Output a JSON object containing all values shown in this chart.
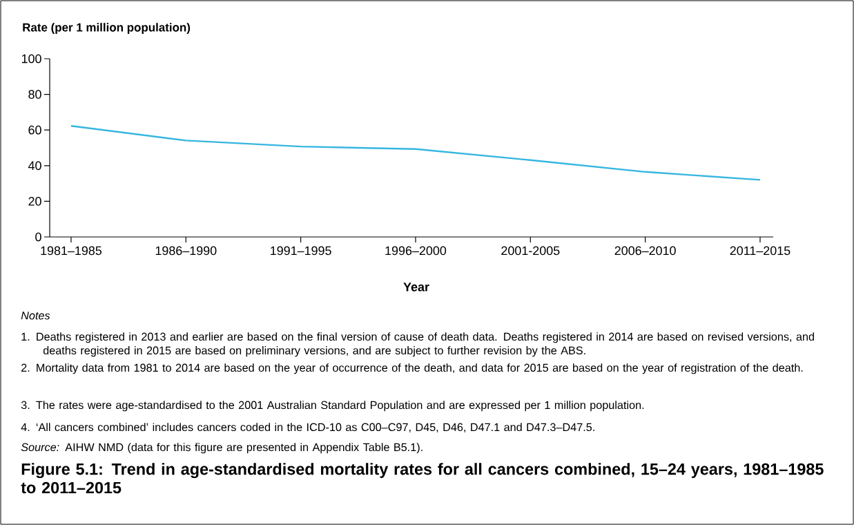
{
  "chart_data": {
    "type": "line",
    "title": "Figure 5.1: Trend in age-standardised mortality rates for all cancers combined, 15–24 years, 1981–1985 to 2011–2015",
    "xlabel": "Year",
    "ylabel": "Rate (per 1 million population)",
    "categories": [
      "1981–1985",
      "1986–1990",
      "1991–1995",
      "1996–2000",
      "2001-2005",
      "2006–2010",
      "2011–2015"
    ],
    "series": [
      {
        "color": "#35b6e0",
        "values": [
          62.3,
          54.1,
          50.7,
          49.3,
          43.1,
          36.5,
          32.0
        ]
      }
    ],
    "ylim": [
      0,
      100
    ],
    "yticks": [
      0,
      20,
      40,
      60,
      80,
      100
    ],
    "annotations": [
      "Notes",
      "1. Deaths registered in 2013 and earlier are based on the final version of cause of death data. Deaths registered in 2014 are based on revised versions, and deaths registered in 2015 are based on preliminary versions, and are subject to further revision by the ABS.",
      "2. Mortality data from 1981 to 2014 are based on the year of occurrence of the death, and data for 2015 are based on the year of registration of the death.",
      "3. The rates were age-standardised to the 2001 Australian Standard Population and are expressed per 1 million population.",
      "4. ‘All cancers combined’ includes cancers coded in the ICD-10 as C00–C97, D45, D46, D47.1 and D47.3–D47.5.",
      "*Source:* AIHW NMD (data for this figure are presented in Appendix Table B5.1)."
    ]
  }
}
